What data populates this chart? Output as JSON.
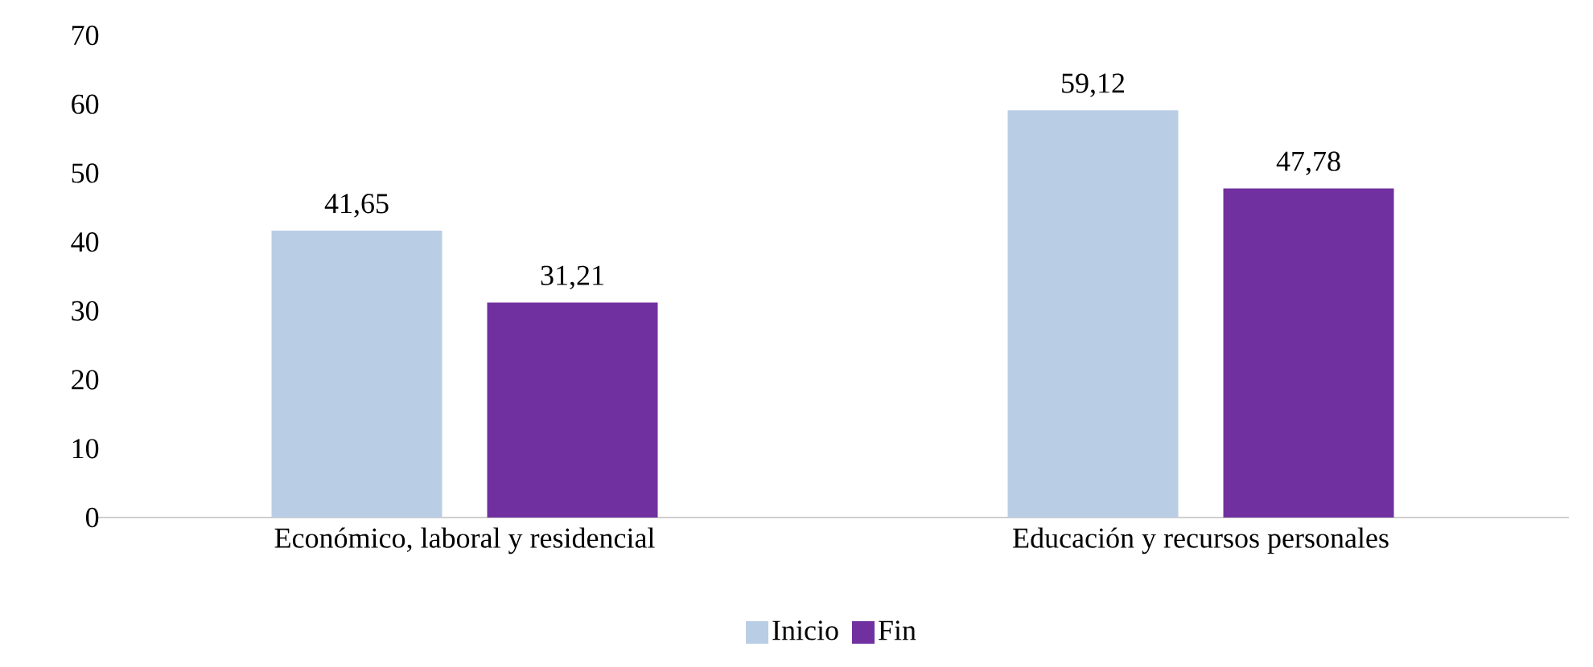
{
  "chart_data": {
    "type": "bar",
    "categories": [
      "Económico, laboral y residencial",
      "Educación y recursos personales"
    ],
    "series": [
      {
        "name": "Inicio",
        "color": "#b9cde5",
        "values": [
          41.65,
          59.12
        ],
        "value_labels": [
          "41,65",
          "59,12"
        ]
      },
      {
        "name": "Fin",
        "color": "#7030a0",
        "values": [
          31.21,
          47.78
        ],
        "value_labels": [
          "31,21",
          "47,78"
        ]
      }
    ],
    "ylim": [
      0,
      70
    ],
    "yticks": [
      0,
      10,
      20,
      30,
      40,
      50,
      60,
      70
    ],
    "legend": "bottom"
  }
}
